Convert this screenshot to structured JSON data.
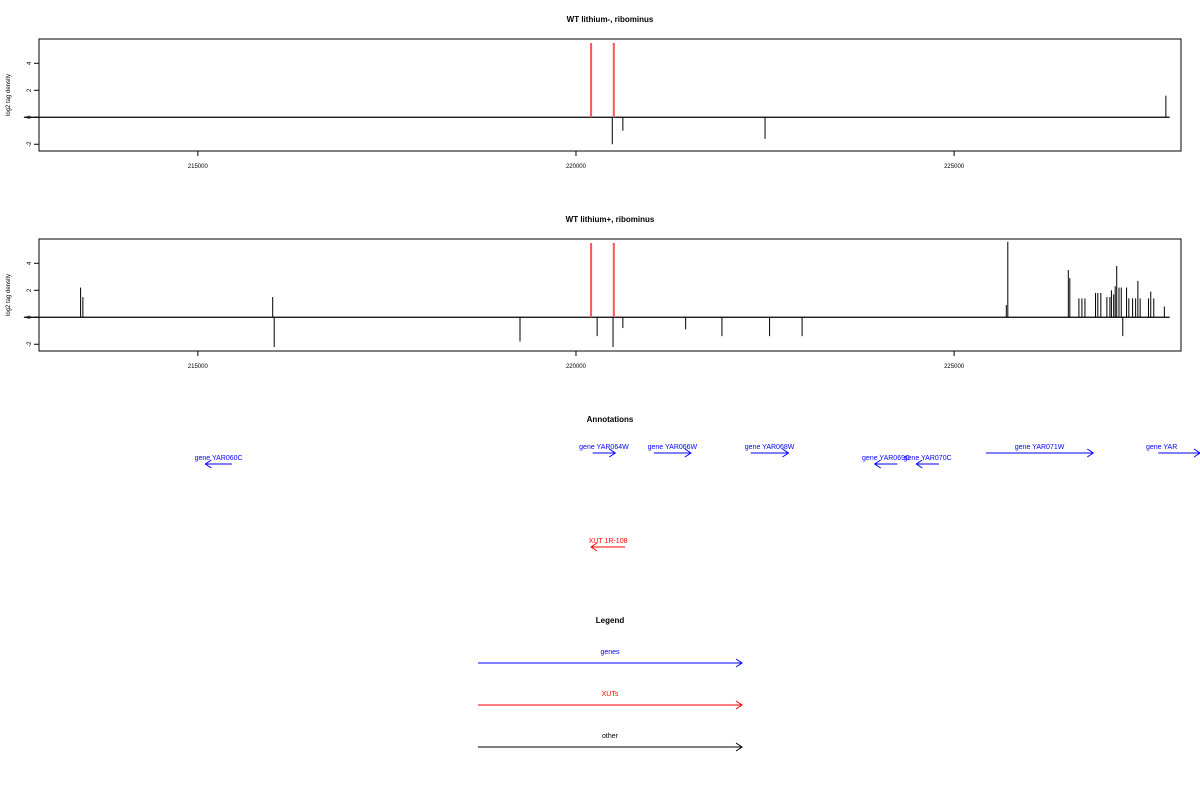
{
  "chart_data": [
    {
      "type": "bar",
      "title": "WT lithium-, ribominus",
      "ylabel": "log2 tag density",
      "xlim": [
        212900,
        228000
      ],
      "ylim": [
        -2.5,
        5.8
      ],
      "xticks": [
        215000,
        220000,
        225000
      ],
      "yticks": [
        -2,
        0,
        2,
        4
      ],
      "baseline": 0,
      "axis_range": [
        212700,
        227850
      ],
      "highlight_lines": [
        220200,
        220500
      ],
      "highlight_color": "#ff5555",
      "bars": [
        {
          "x": 220480,
          "y": -2.0
        },
        {
          "x": 220620,
          "y": -1.0
        },
        {
          "x": 222500,
          "y": -1.6
        },
        {
          "x": 227800,
          "y": 1.6
        }
      ]
    },
    {
      "type": "bar",
      "title": "WT lithium+, ribominus",
      "ylabel": "log2 tag density",
      "xlim": [
        212900,
        228000
      ],
      "ylim": [
        -2.5,
        5.8
      ],
      "xticks": [
        215000,
        220000,
        225000
      ],
      "yticks": [
        -2,
        0,
        2,
        4
      ],
      "baseline": 0,
      "axis_range": [
        212700,
        227850
      ],
      "highlight_lines": [
        220200,
        220500
      ],
      "highlight_color": "#ff5555",
      "bars": [
        {
          "x": 213450,
          "y": 2.2
        },
        {
          "x": 213480,
          "y": 1.5
        },
        {
          "x": 215990,
          "y": 1.5
        },
        {
          "x": 216010,
          "y": -2.2
        },
        {
          "x": 219260,
          "y": -1.8
        },
        {
          "x": 220280,
          "y": -1.4
        },
        {
          "x": 220490,
          "y": -2.2
        },
        {
          "x": 220620,
          "y": -0.8
        },
        {
          "x": 221450,
          "y": -0.9
        },
        {
          "x": 221930,
          "y": -1.4
        },
        {
          "x": 222560,
          "y": -1.4
        },
        {
          "x": 222990,
          "y": -1.4
        },
        {
          "x": 225690,
          "y": 0.9
        },
        {
          "x": 225710,
          "y": 5.6
        },
        {
          "x": 226510,
          "y": 3.5
        },
        {
          "x": 226530,
          "y": 2.9
        },
        {
          "x": 226650,
          "y": 1.4
        },
        {
          "x": 226690,
          "y": 1.4
        },
        {
          "x": 226730,
          "y": 1.4
        },
        {
          "x": 226870,
          "y": 1.8
        },
        {
          "x": 226900,
          "y": 1.8
        },
        {
          "x": 226940,
          "y": 1.8
        },
        {
          "x": 227020,
          "y": 1.5
        },
        {
          "x": 227060,
          "y": 1.5
        },
        {
          "x": 227080,
          "y": 2.0
        },
        {
          "x": 227110,
          "y": 1.7
        },
        {
          "x": 227130,
          "y": 2.3
        },
        {
          "x": 227150,
          "y": 3.8
        },
        {
          "x": 227180,
          "y": 2.2
        },
        {
          "x": 227210,
          "y": 2.2
        },
        {
          "x": 227230,
          "y": -1.4
        },
        {
          "x": 227280,
          "y": 2.2
        },
        {
          "x": 227310,
          "y": 1.4
        },
        {
          "x": 227360,
          "y": 1.4
        },
        {
          "x": 227400,
          "y": 1.4
        },
        {
          "x": 227430,
          "y": 2.7
        },
        {
          "x": 227460,
          "y": 1.4
        },
        {
          "x": 227570,
          "y": 1.4
        },
        {
          "x": 227600,
          "y": 1.9
        },
        {
          "x": 227640,
          "y": 1.4
        },
        {
          "x": 227780,
          "y": 0.8
        }
      ]
    }
  ],
  "annotations": {
    "title": "Annotations",
    "genes_color": "#0000ff",
    "xuts_color": "#ff0000",
    "items": [
      {
        "label": "gene YAR060C",
        "strand": "-",
        "start": 215100,
        "end": 215450,
        "row": 2,
        "kind": "gene"
      },
      {
        "label": "gene YAR064W",
        "strand": "+",
        "start": 220220,
        "end": 220520,
        "row": 1,
        "kind": "gene"
      },
      {
        "label": "gene YAR066W",
        "strand": "+",
        "start": 221030,
        "end": 221520,
        "row": 1,
        "kind": "gene"
      },
      {
        "label": "gene YAR068W",
        "strand": "+",
        "start": 222310,
        "end": 222810,
        "row": 1,
        "kind": "gene"
      },
      {
        "label": "gene YAR069C",
        "strand": "-",
        "start": 223950,
        "end": 224250,
        "row": 2,
        "kind": "gene"
      },
      {
        "label": "gene YAR070C",
        "strand": "-",
        "start": 224500,
        "end": 224800,
        "row": 2,
        "kind": "gene"
      },
      {
        "label": "gene YAR071W",
        "strand": "+",
        "start": 225420,
        "end": 226840,
        "row": 1,
        "kind": "gene"
      },
      {
        "label": "gene YAR",
        "strand": "+",
        "start": 227700,
        "end": 228300,
        "row": 1,
        "kind": "gene"
      },
      {
        "label": "XUT 1R-108",
        "strand": "-",
        "start": 220200,
        "end": 220650,
        "row": 3,
        "kind": "xut"
      }
    ]
  },
  "legend": {
    "title": "Legend",
    "items": [
      {
        "label": "genes",
        "color": "#0000ff"
      },
      {
        "label": "XUTs",
        "color": "#ff0000"
      },
      {
        "label": "other",
        "color": "#000000"
      }
    ]
  }
}
